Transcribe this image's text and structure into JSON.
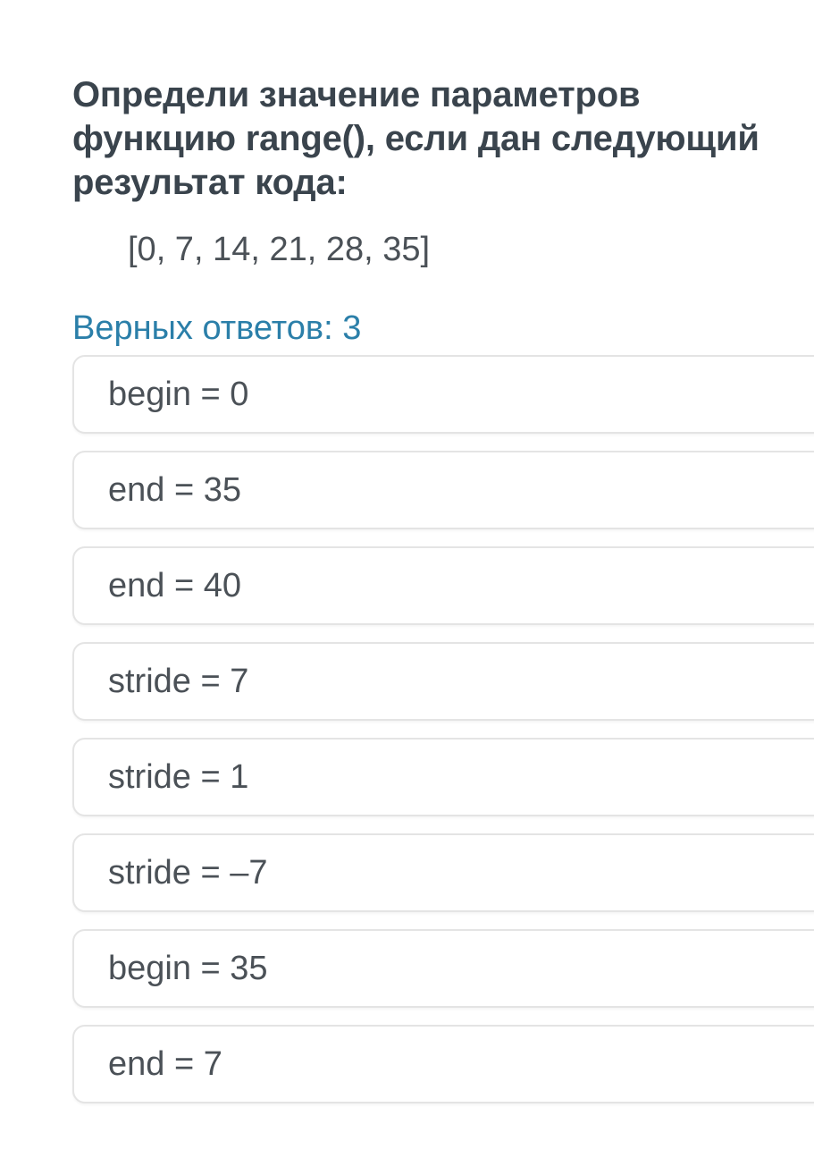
{
  "question": {
    "title": "Определи значение параметров функцию range(), если дан следующий результат кода:",
    "title_lines": [
      "Определи значение параметров",
      "функцию range(), если дан следующий",
      "результат кода:"
    ],
    "code_result": "[0, 7, 14, 21, 28, 35]",
    "correct_count_label": "Верных ответов: 3",
    "correct_count": 3
  },
  "options": [
    {
      "label": "begin = 0"
    },
    {
      "label": "end = 35"
    },
    {
      "label": "end = 40"
    },
    {
      "label": "stride = 7"
    },
    {
      "label": "stride = 1"
    },
    {
      "label": "stride = –7"
    },
    {
      "label": "begin = 35"
    },
    {
      "label": "end = 7"
    }
  ],
  "colors": {
    "background": "#ffffff",
    "heading_text": "#3a444d",
    "body_text": "#4b5157",
    "accent_blue": "#2b7fa9",
    "card_border": "#e4e4e4"
  }
}
